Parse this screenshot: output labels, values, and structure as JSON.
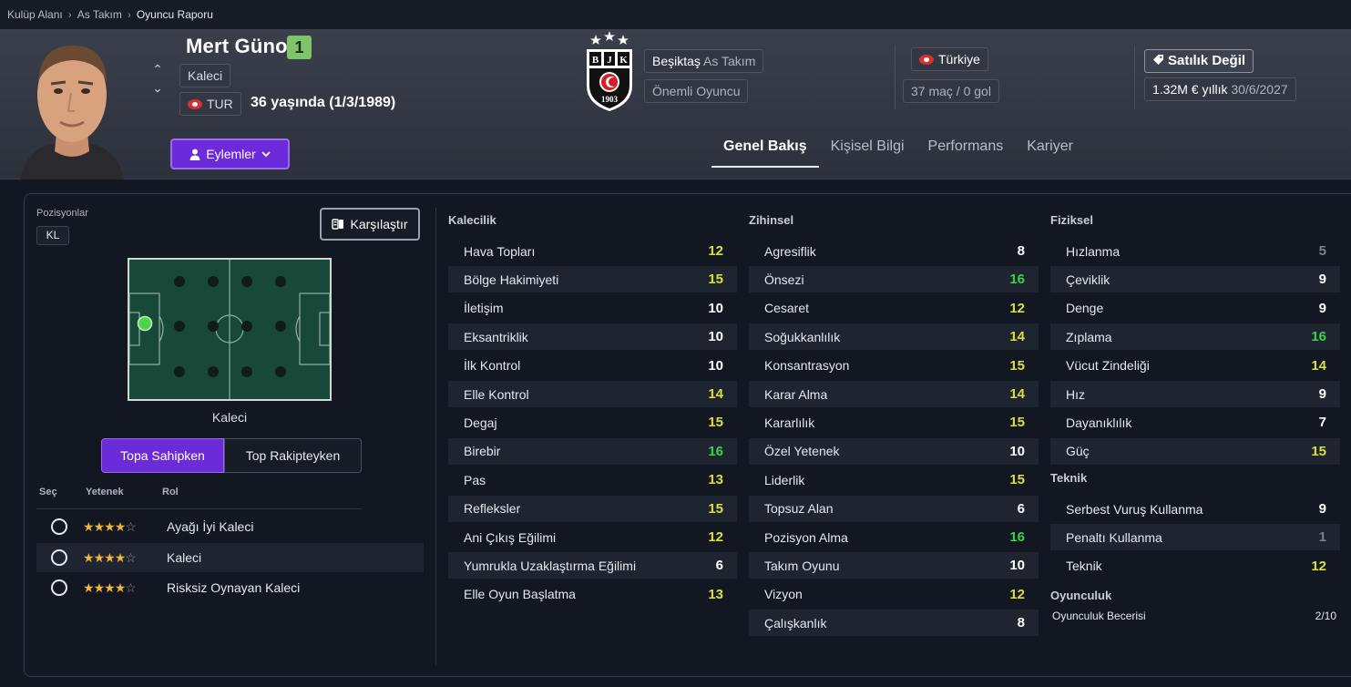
{
  "breadcrumb": {
    "items": [
      "Kulüp Alanı",
      "As Takım",
      "Oyuncu Raporu"
    ]
  },
  "player": {
    "name": "Mert Günok",
    "number": "1",
    "position": "Kaleci",
    "nation_code": "TUR",
    "age_text": "36 yaşında (1/3/1989)"
  },
  "actions_label": "Eylemler",
  "club": {
    "name": "Beşiktaş",
    "squad": "As Takım",
    "status": "Önemli Oyuncu",
    "logo_letters": [
      "B",
      "J",
      "K"
    ],
    "logo_year": "1903"
  },
  "nation": {
    "name": "Türkiye",
    "caps": "37 maç / 0 gol"
  },
  "contract": {
    "transfer_status": "Satılık Değil",
    "wage": "1.32M € yıllık",
    "expiry": "30/6/2027"
  },
  "tabs": [
    "Genel Bakış",
    "Kişisel Bilgi",
    "Performans",
    "Kariyer"
  ],
  "positions": {
    "label": "Pozisyonlar",
    "value": "KL",
    "pitch_label": "Kaleci"
  },
  "compare_label": "Karşılaştır",
  "toggle": {
    "on": "Topa Sahipken",
    "off": "Top Rakipteyken"
  },
  "roles": {
    "headers": [
      "Seç",
      "Yetenek",
      "Rol"
    ],
    "items": [
      {
        "name": "Ayağı İyi Kaleci",
        "stars": 4,
        "max": 5
      },
      {
        "name": "Kaleci",
        "stars": 4,
        "max": 5
      },
      {
        "name": "Risksiz Oynayan Kaleci",
        "stars": 4,
        "max": 5
      }
    ]
  },
  "attributes": {
    "kalecilik": {
      "title": "Kalecilik",
      "items": [
        {
          "name": "Hava Topları",
          "value": "12"
        },
        {
          "name": "Bölge Hakimiyeti",
          "value": "15"
        },
        {
          "name": "İletişim",
          "value": "10"
        },
        {
          "name": "Eksantriklik",
          "value": "10"
        },
        {
          "name": "İlk Kontrol",
          "value": "10"
        },
        {
          "name": "Elle Kontrol",
          "value": "14"
        },
        {
          "name": "Degaj",
          "value": "15"
        },
        {
          "name": "Birebir",
          "value": "16"
        },
        {
          "name": "Pas",
          "value": "13"
        },
        {
          "name": "Refleksler",
          "value": "15"
        },
        {
          "name": "Ani Çıkış Eğilimi",
          "value": "12"
        },
        {
          "name": "Yumrukla Uzaklaştırma Eğilimi",
          "value": "6"
        },
        {
          "name": "Elle Oyun Başlatma",
          "value": "13"
        }
      ]
    },
    "zihinsel": {
      "title": "Zihinsel",
      "items": [
        {
          "name": "Agresiflik",
          "value": "8"
        },
        {
          "name": "Önsezi",
          "value": "16"
        },
        {
          "name": "Cesaret",
          "value": "12"
        },
        {
          "name": "Soğukkanlılık",
          "value": "14"
        },
        {
          "name": "Konsantrasyon",
          "value": "15"
        },
        {
          "name": "Karar Alma",
          "value": "14"
        },
        {
          "name": "Kararlılık",
          "value": "15"
        },
        {
          "name": "Özel Yetenek",
          "value": "10"
        },
        {
          "name": "Liderlik",
          "value": "15"
        },
        {
          "name": "Topsuz Alan",
          "value": "6"
        },
        {
          "name": "Pozisyon Alma",
          "value": "16"
        },
        {
          "name": "Takım Oyunu",
          "value": "10"
        },
        {
          "name": "Vizyon",
          "value": "12"
        },
        {
          "name": "Çalışkanlık",
          "value": "8"
        }
      ]
    },
    "fiziksel": {
      "title": "Fiziksel",
      "items": [
        {
          "name": "Hızlanma",
          "value": "5"
        },
        {
          "name": "Çeviklik",
          "value": "9"
        },
        {
          "name": "Denge",
          "value": "9"
        },
        {
          "name": "Zıplama",
          "value": "16"
        },
        {
          "name": "Vücut Zindeliği",
          "value": "14"
        },
        {
          "name": "Hız",
          "value": "9"
        },
        {
          "name": "Dayanıklılık",
          "value": "7"
        },
        {
          "name": "Güç",
          "value": "15"
        }
      ]
    },
    "teknik": {
      "title": "Teknik",
      "items": [
        {
          "name": "Serbest Vuruş Kullanma",
          "value": "9"
        },
        {
          "name": "Penaltı Kullanma",
          "value": "1"
        },
        {
          "name": "Teknik",
          "value": "12"
        }
      ]
    }
  },
  "oyunculuk": {
    "title": "Oyunculuk",
    "label": "Oyunculuk Becerisi",
    "value": "2/10"
  },
  "colors": {
    "accent": "#6c2bd9",
    "white_value": "#ffffff",
    "yellow_value": "#d7e13d",
    "green_value": "#37d44a",
    "grey_value": "#7b808b"
  }
}
